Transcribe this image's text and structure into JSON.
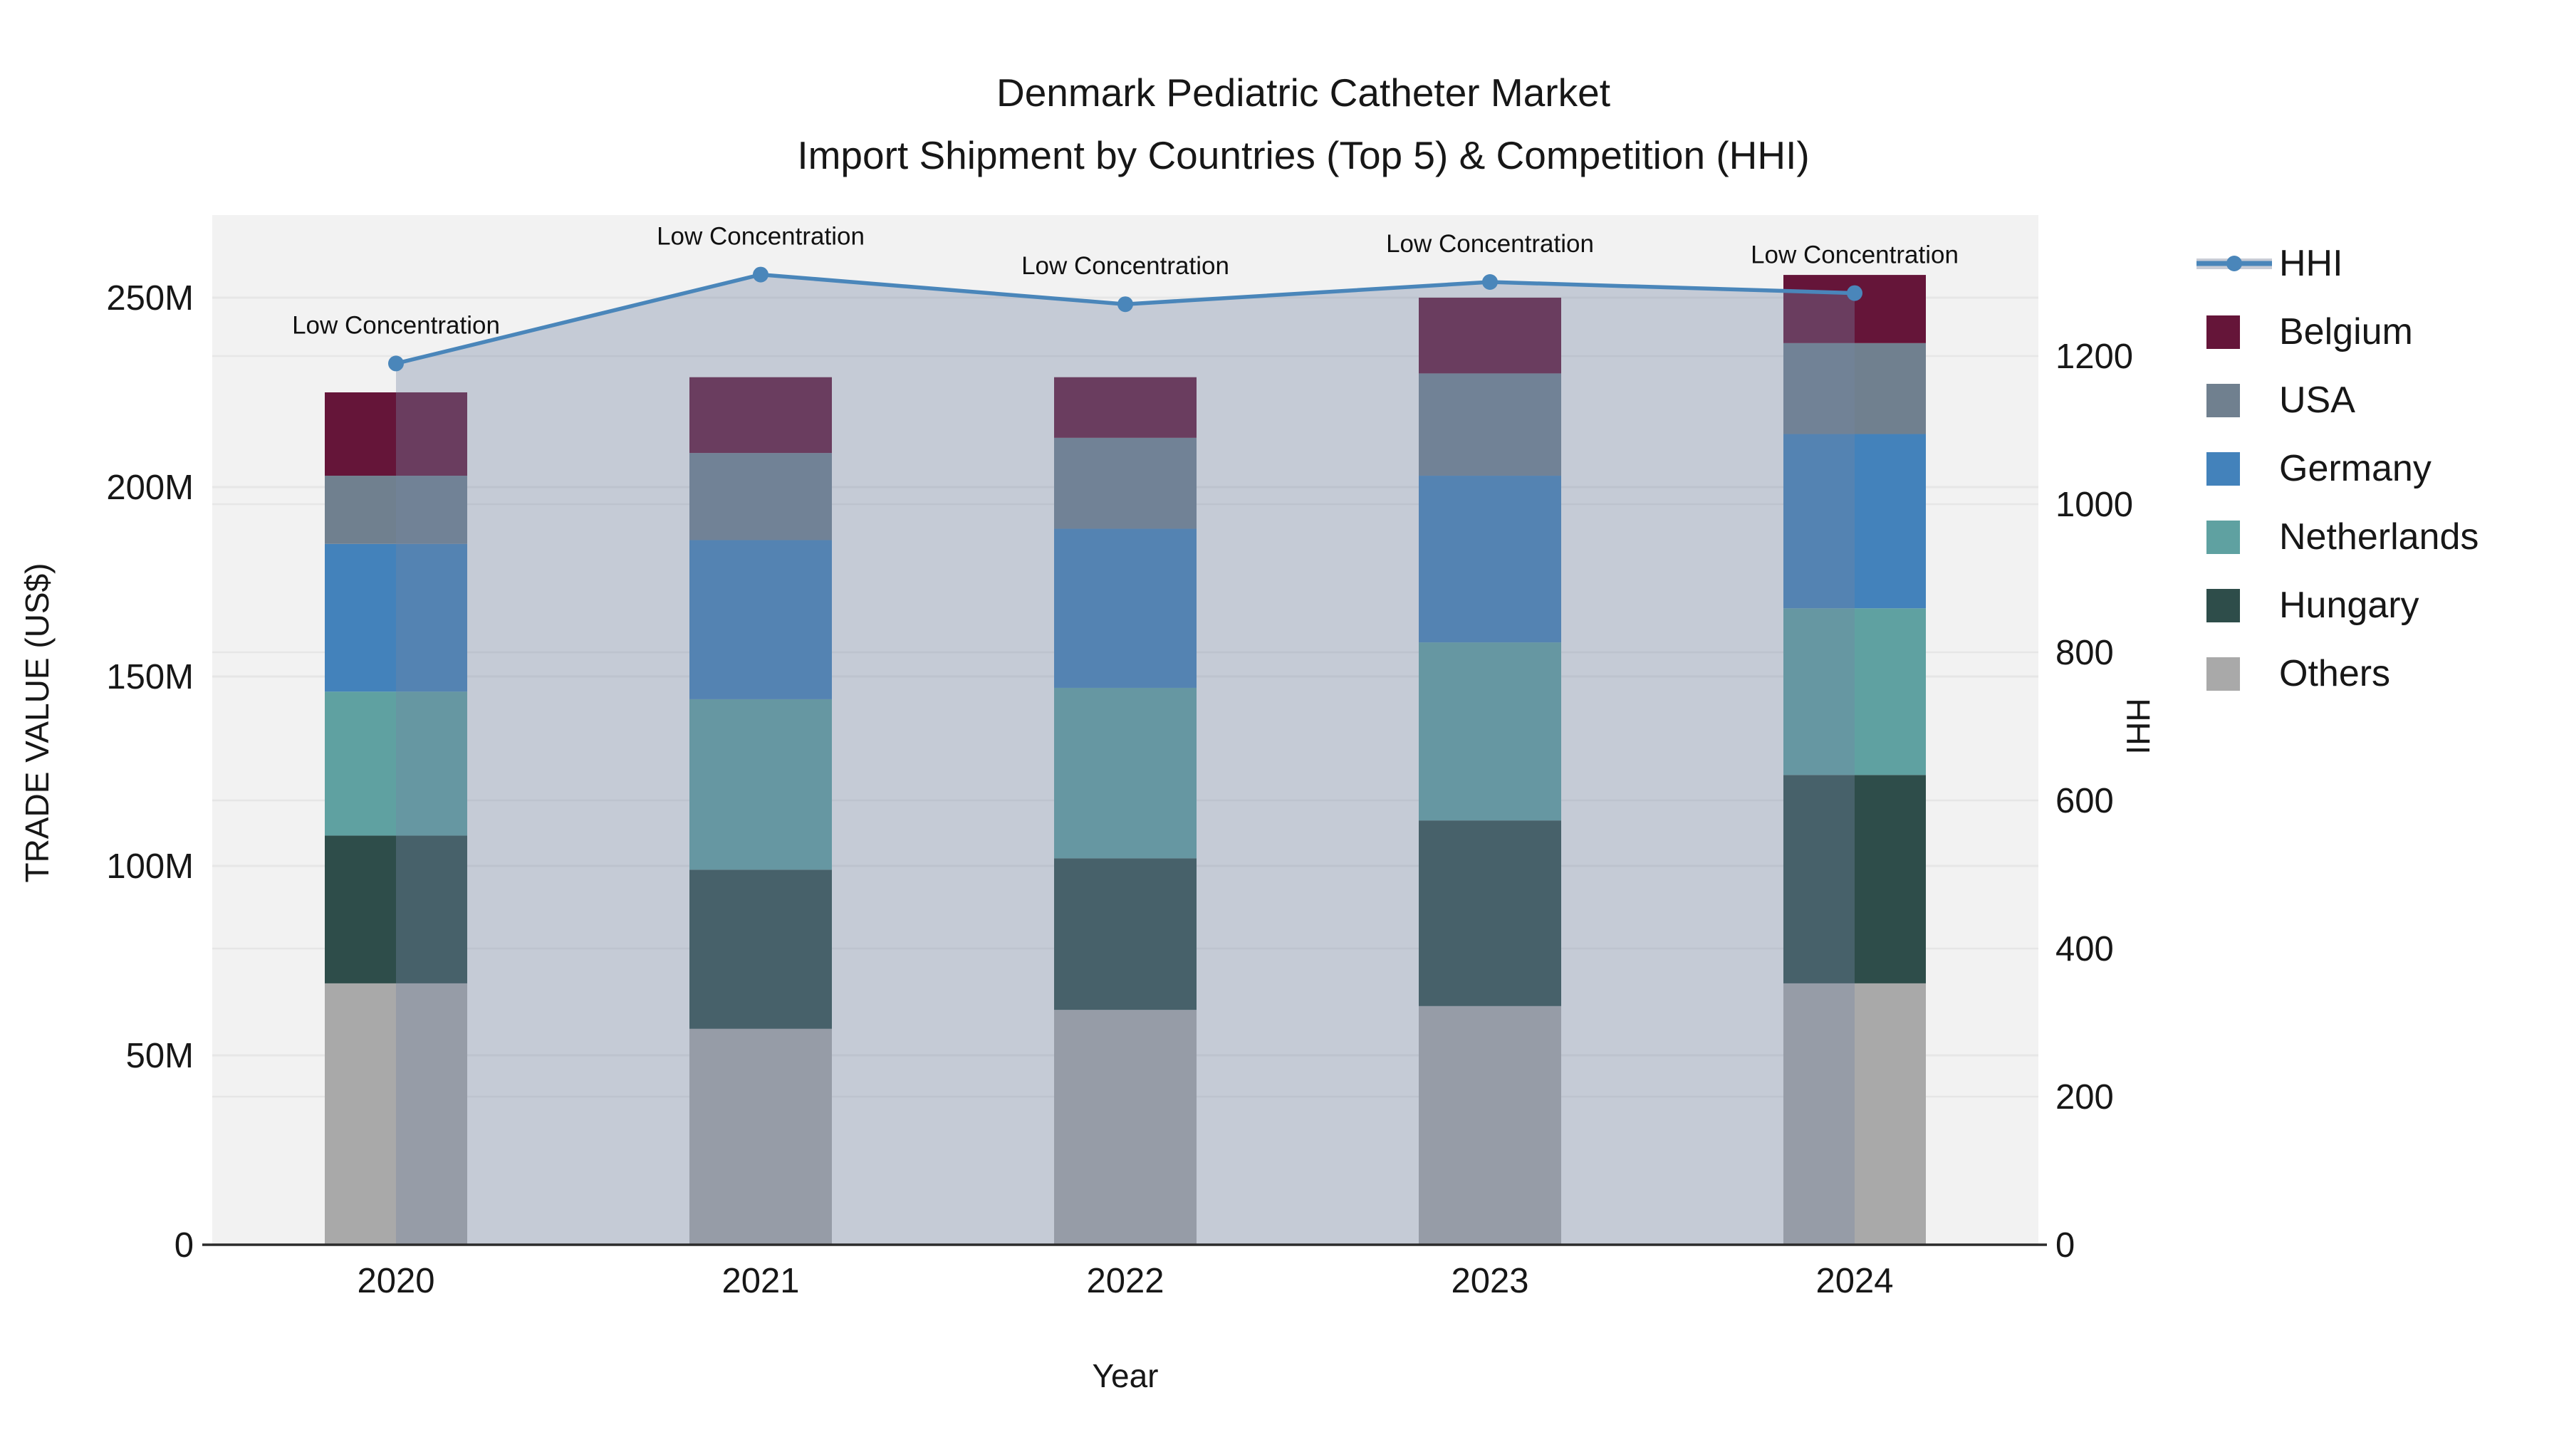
{
  "title": "Denmark Pediatric Catheter Market",
  "subtitle": "Import Shipment by Countries (Top 5) & Competition (HHI)",
  "colors": {
    "figure_background": "#ffffff",
    "plot_background": "#f2f2f2",
    "gridline": "#e6e6e6",
    "axis_line": "#2b2b2b",
    "text": "#171717",
    "hhi_line": "#4a86ba",
    "hhi_area_fill": "rgba(116,133,163,0.36)",
    "hhi_legend_band": "#c8ccd6"
  },
  "legend": [
    {
      "label": "HHI",
      "type": "line",
      "color": "#4a86ba"
    },
    {
      "label": "Belgium",
      "type": "swatch",
      "color": "#651539"
    },
    {
      "label": "USA",
      "type": "swatch",
      "color": "#70808f"
    },
    {
      "label": "Germany",
      "type": "swatch",
      "color": "#4382bb"
    },
    {
      "label": "Netherlands",
      "type": "swatch",
      "color": "#5fa1a1"
    },
    {
      "label": "Hungary",
      "type": "swatch",
      "color": "#2e4d4a"
    },
    {
      "label": "Others",
      "type": "swatch",
      "color": "#a9a9a9"
    }
  ],
  "chart_data": {
    "type": "bar",
    "stacked": true,
    "title": "Denmark Pediatric Catheter Market — Import Shipment by Countries (Top 5) & Competition (HHI)",
    "categories": [
      "2020",
      "2021",
      "2022",
      "2023",
      "2024"
    ],
    "value_unit": "million US$",
    "series": [
      {
        "name": "Others",
        "color": "#a9a9a9",
        "values": [
          69,
          57,
          62,
          63,
          69
        ]
      },
      {
        "name": "Hungary",
        "color": "#2e4d4a",
        "values": [
          39,
          42,
          40,
          49,
          55
        ]
      },
      {
        "name": "Netherlands",
        "color": "#5fa1a1",
        "values": [
          38,
          45,
          45,
          47,
          44
        ]
      },
      {
        "name": "Germany",
        "color": "#4382bb",
        "values": [
          39,
          42,
          42,
          44,
          46
        ]
      },
      {
        "name": "USA",
        "color": "#70808f",
        "values": [
          18,
          23,
          24,
          27,
          24
        ]
      },
      {
        "name": "Belgium",
        "color": "#651539",
        "values": [
          22,
          20,
          16,
          20,
          18
        ]
      }
    ],
    "line_series": {
      "name": "HHI",
      "axis": "right",
      "color": "#4a86ba",
      "area_fill": "rgba(116,133,163,0.36)",
      "values": [
        1190,
        1310,
        1270,
        1300,
        1285
      ]
    },
    "annotations": [
      "Low Concentration",
      "Low Concentration",
      "Low Concentration",
      "Low Concentration",
      "Low Concentration"
    ],
    "xlabel": "Year",
    "left_axis": {
      "label": "TRADE VALUE (US$)",
      "tick_labels": [
        "0",
        "50M",
        "100M",
        "150M",
        "200M",
        "250M"
      ],
      "tick_values": [
        0,
        50,
        100,
        150,
        200,
        250
      ],
      "range": [
        0,
        272
      ]
    },
    "right_axis": {
      "label": "HHI",
      "tick_labels": [
        "0",
        "200",
        "400",
        "600",
        "800",
        "1000",
        "1200"
      ],
      "tick_values": [
        0,
        200,
        400,
        600,
        800,
        1000,
        1200
      ],
      "range": [
        0,
        1390
      ]
    },
    "grid": true,
    "legend_position": "right"
  }
}
